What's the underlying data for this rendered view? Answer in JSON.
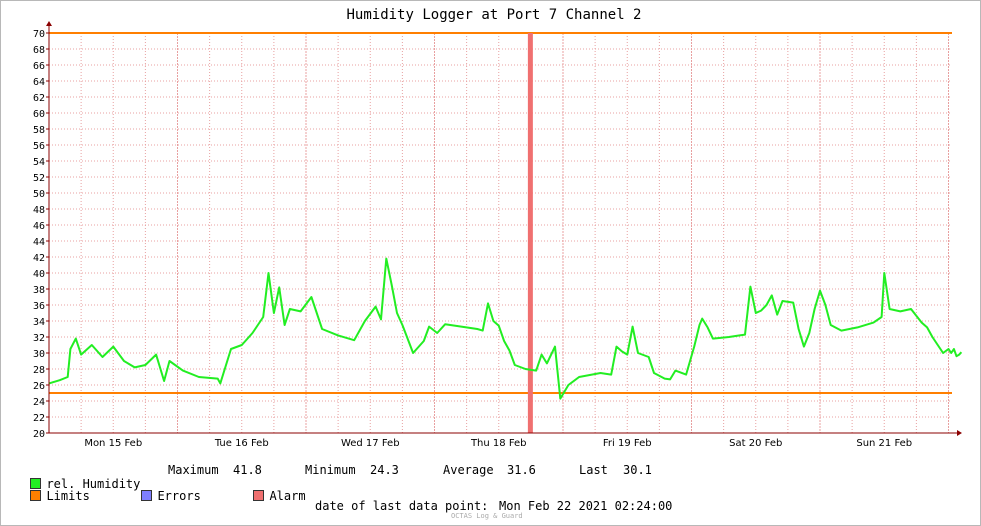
{
  "chart_data": {
    "type": "line",
    "title": "Humidity Logger at Port 7 Channel 2",
    "xlabel": "",
    "ylabel": "",
    "ylim": [
      20,
      70
    ],
    "ytick_step": 2,
    "x_day_labels": [
      "Mon 15 Feb",
      "Tue 16 Feb",
      "Wed 17 Feb",
      "Thu 18 Feb",
      "Fri 19 Feb",
      "Sat 20 Feb",
      "Sun 21 Feb"
    ],
    "x_start": "Mon 15 Feb 00:00",
    "x_end": "Mon 22 Feb 02:24",
    "grid": true,
    "limits": {
      "upper": 70,
      "lower": 25
    },
    "alarm_at": "Thu 18 Feb 18:00",
    "series": [
      {
        "name": "rel. Humidity",
        "color": "#22ee22",
        "points": [
          [
            "Mon 15 Feb 00:00",
            26.2
          ],
          [
            "Mon 15 Feb 02:00",
            26.6
          ],
          [
            "Mon 15 Feb 03:30",
            27.0
          ],
          [
            "Mon 15 Feb 04:00",
            30.5
          ],
          [
            "Mon 15 Feb 05:00",
            31.8
          ],
          [
            "Mon 15 Feb 06:00",
            29.8
          ],
          [
            "Mon 15 Feb 08:00",
            31.0
          ],
          [
            "Mon 15 Feb 10:00",
            29.5
          ],
          [
            "Mon 15 Feb 12:00",
            30.8
          ],
          [
            "Mon 15 Feb 14:00",
            29.0
          ],
          [
            "Mon 15 Feb 16:00",
            28.2
          ],
          [
            "Mon 15 Feb 18:00",
            28.5
          ],
          [
            "Mon 15 Feb 20:00",
            29.8
          ],
          [
            "Mon 15 Feb 21:30",
            26.5
          ],
          [
            "Mon 15 Feb 22:30",
            29.0
          ],
          [
            "Tue 16 Feb 01:00",
            27.8
          ],
          [
            "Tue 16 Feb 04:00",
            27.0
          ],
          [
            "Tue 16 Feb 07:30",
            26.8
          ],
          [
            "Tue 16 Feb 08:00",
            26.2
          ],
          [
            "Tue 16 Feb 10:00",
            30.5
          ],
          [
            "Tue 16 Feb 12:00",
            31.0
          ],
          [
            "Tue 16 Feb 14:00",
            32.5
          ],
          [
            "Tue 16 Feb 16:00",
            34.5
          ],
          [
            "Tue 16 Feb 17:00",
            40.0
          ],
          [
            "Tue 16 Feb 18:00",
            35.0
          ],
          [
            "Tue 16 Feb 19:00",
            38.2
          ],
          [
            "Tue 16 Feb 20:00",
            33.5
          ],
          [
            "Tue 16 Feb 21:00",
            35.5
          ],
          [
            "Tue 16 Feb 23:00",
            35.2
          ],
          [
            "Wed 17 Feb 01:00",
            37.0
          ],
          [
            "Wed 17 Feb 03:00",
            33.0
          ],
          [
            "Wed 17 Feb 06:00",
            32.2
          ],
          [
            "Wed 17 Feb 09:00",
            31.6
          ],
          [
            "Wed 17 Feb 11:00",
            34.0
          ],
          [
            "Wed 17 Feb 13:00",
            35.8
          ],
          [
            "Wed 17 Feb 14:00",
            34.2
          ],
          [
            "Wed 17 Feb 15:00",
            41.8
          ],
          [
            "Wed 17 Feb 16:00",
            38.5
          ],
          [
            "Wed 17 Feb 17:00",
            35.0
          ],
          [
            "Wed 17 Feb 18:00",
            33.5
          ],
          [
            "Wed 17 Feb 20:00",
            30.0
          ],
          [
            "Wed 17 Feb 22:00",
            31.5
          ],
          [
            "Wed 17 Feb 23:00",
            33.3
          ],
          [
            "Thu 18 Feb 00:30",
            32.5
          ],
          [
            "Thu 18 Feb 02:00",
            33.6
          ],
          [
            "Thu 18 Feb 05:00",
            33.3
          ],
          [
            "Thu 18 Feb 08:00",
            33.0
          ],
          [
            "Thu 18 Feb 09:00",
            32.8
          ],
          [
            "Thu 18 Feb 10:00",
            36.2
          ],
          [
            "Thu 18 Feb 11:00",
            34.0
          ],
          [
            "Thu 18 Feb 12:00",
            33.4
          ],
          [
            "Thu 18 Feb 13:00",
            31.5
          ],
          [
            "Thu 18 Feb 14:00",
            30.3
          ],
          [
            "Thu 18 Feb 15:00",
            28.5
          ],
          [
            "Thu 18 Feb 17:00",
            28.0
          ],
          [
            "Thu 18 Feb 19:00",
            27.8
          ],
          [
            "Thu 18 Feb 20:00",
            29.8
          ],
          [
            "Thu 18 Feb 21:00",
            28.7
          ],
          [
            "Thu 18 Feb 22:30",
            30.8
          ],
          [
            "Thu 18 Feb 23:30",
            24.3
          ],
          [
            "Fri 19 Feb 01:00",
            26.0
          ],
          [
            "Fri 19 Feb 03:00",
            27.0
          ],
          [
            "Fri 19 Feb 07:00",
            27.5
          ],
          [
            "Fri 19 Feb 09:00",
            27.3
          ],
          [
            "Fri 19 Feb 10:00",
            30.8
          ],
          [
            "Fri 19 Feb 11:00",
            30.2
          ],
          [
            "Fri 19 Feb 12:00",
            29.8
          ],
          [
            "Fri 19 Feb 13:00",
            33.3
          ],
          [
            "Fri 19 Feb 14:00",
            30.0
          ],
          [
            "Fri 19 Feb 16:00",
            29.5
          ],
          [
            "Fri 19 Feb 17:00",
            27.5
          ],
          [
            "Fri 19 Feb 19:00",
            26.8
          ],
          [
            "Fri 19 Feb 20:00",
            26.7
          ],
          [
            "Fri 19 Feb 21:00",
            27.8
          ],
          [
            "Fri 19 Feb 23:00",
            27.3
          ],
          [
            "Sat 20 Feb 00:30",
            30.8
          ],
          [
            "Sat 20 Feb 01:30",
            33.5
          ],
          [
            "Sat 20 Feb 02:00",
            34.3
          ],
          [
            "Sat 20 Feb 03:00",
            33.2
          ],
          [
            "Sat 20 Feb 04:00",
            31.8
          ],
          [
            "Sat 20 Feb 07:00",
            32.0
          ],
          [
            "Sat 20 Feb 09:00",
            32.2
          ],
          [
            "Sat 20 Feb 10:00",
            32.3
          ],
          [
            "Sat 20 Feb 11:00",
            38.3
          ],
          [
            "Sat 20 Feb 12:00",
            35.0
          ],
          [
            "Sat 20 Feb 13:00",
            35.3
          ],
          [
            "Sat 20 Feb 14:00",
            36.0
          ],
          [
            "Sat 20 Feb 15:00",
            37.2
          ],
          [
            "Sat 20 Feb 16:00",
            34.8
          ],
          [
            "Sat 20 Feb 17:00",
            36.5
          ],
          [
            "Sat 20 Feb 19:00",
            36.3
          ],
          [
            "Sat 20 Feb 20:00",
            33.0
          ],
          [
            "Sat 20 Feb 21:00",
            30.8
          ],
          [
            "Sat 20 Feb 22:00",
            32.5
          ],
          [
            "Sat 20 Feb 23:00",
            35.5
          ],
          [
            "Sun 21 Feb 00:00",
            37.8
          ],
          [
            "Sun 21 Feb 01:00",
            36.0
          ],
          [
            "Sun 21 Feb 02:00",
            33.5
          ],
          [
            "Sun 21 Feb 04:00",
            32.8
          ],
          [
            "Sun 21 Feb 07:00",
            33.2
          ],
          [
            "Sun 21 Feb 10:00",
            33.8
          ],
          [
            "Sun 21 Feb 11:30",
            34.5
          ],
          [
            "Sun 21 Feb 12:00",
            40.0
          ],
          [
            "Sun 21 Feb 13:00",
            35.5
          ],
          [
            "Sun 21 Feb 15:00",
            35.2
          ],
          [
            "Sun 21 Feb 17:00",
            35.5
          ],
          [
            "Sun 21 Feb 19:00",
            33.8
          ],
          [
            "Sun 21 Feb 20:00",
            33.2
          ],
          [
            "Sun 21 Feb 21:00",
            32.0
          ],
          [
            "Sun 21 Feb 23:00",
            30.0
          ],
          [
            "Mon 22 Feb 00:00",
            30.5
          ],
          [
            "Mon 22 Feb 00:30",
            30.0
          ],
          [
            "Mon 22 Feb 01:00",
            30.5
          ],
          [
            "Mon 22 Feb 01:30",
            29.6
          ],
          [
            "Mon 22 Feb 02:00",
            29.8
          ],
          [
            "Mon 22 Feb 02:24",
            30.1
          ]
        ]
      }
    ]
  },
  "colors": {
    "series": "#22ee22",
    "limits": "#ff7f00",
    "errors": "#7f7fff",
    "alarm": "#f07070",
    "grid": "#e8a0a0",
    "axis": "#8b0000"
  },
  "legend": {
    "series_label": "rel. Humidity",
    "max_label": "Maximum",
    "max_value": "41.8",
    "min_label": "Minimum",
    "min_value": "24.3",
    "avg_label": "Average",
    "avg_value": "31.6",
    "last_label": "Last",
    "last_value": "30.1",
    "limits_label": "Limits",
    "errors_label": "Errors",
    "alarm_label": "Alarm"
  },
  "footer": {
    "last_point_label": "date of last data point:",
    "last_point_value": "Mon Feb 22 2021 02:24:00",
    "credit": "OCTAS Log & Guard"
  }
}
